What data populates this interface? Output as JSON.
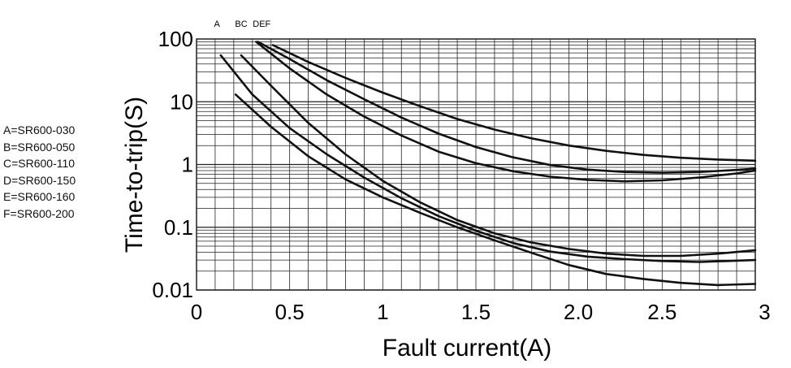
{
  "chart_data": {
    "type": "line",
    "xlabel": "Fault current(A)",
    "ylabel": "Time-to-trip(S)",
    "xlim": [
      0,
      3
    ],
    "ylim": [
      0.01,
      100
    ],
    "y_scale": "log",
    "grid": true,
    "x_ticks": [
      "0",
      "0.5",
      "1",
      "1.5",
      "2.0",
      "2.5",
      "3"
    ],
    "x_tick_values": [
      0,
      0.5,
      1,
      1.5,
      2.05,
      2.5,
      3.05
    ],
    "y_ticks": [
      "100",
      "10",
      "1",
      "0.1",
      "0.01"
    ],
    "y_tick_values": [
      100,
      10,
      1,
      0.1,
      0.01
    ],
    "top_labels": [
      {
        "text": "A",
        "x": 0.11
      },
      {
        "text": "BC",
        "x": 0.24
      },
      {
        "text": "DEF",
        "x": 0.35
      }
    ],
    "legend": [
      "A=SR600-030",
      "B=SR600-050",
      "C=SR600-110",
      "D=SR600-150",
      "E=SR600-160",
      "F=SR600-200"
    ],
    "curves": [
      {
        "points": [
          [
            0.21,
            13
          ],
          [
            0.4,
            4
          ],
          [
            0.6,
            1.35
          ],
          [
            0.8,
            0.58
          ],
          [
            1.0,
            0.3
          ],
          [
            1.2,
            0.17
          ],
          [
            1.4,
            0.1
          ],
          [
            1.6,
            0.062
          ],
          [
            1.8,
            0.039
          ],
          [
            2.0,
            0.025
          ],
          [
            2.2,
            0.018
          ],
          [
            2.4,
            0.015
          ],
          [
            2.6,
            0.013
          ],
          [
            2.8,
            0.012
          ],
          [
            3.0,
            0.0125
          ]
        ]
      },
      {
        "points": [
          [
            0.13,
            55
          ],
          [
            0.3,
            13
          ],
          [
            0.5,
            3.8
          ],
          [
            0.7,
            1.45
          ],
          [
            0.9,
            0.62
          ],
          [
            1.1,
            0.29
          ],
          [
            1.3,
            0.15
          ],
          [
            1.5,
            0.088
          ],
          [
            1.7,
            0.056
          ],
          [
            1.9,
            0.041
          ],
          [
            2.1,
            0.034
          ],
          [
            2.3,
            0.031
          ],
          [
            2.5,
            0.029
          ],
          [
            2.7,
            0.028
          ],
          [
            3.0,
            0.03
          ]
        ]
      },
      {
        "points": [
          [
            0.24,
            55
          ],
          [
            0.4,
            18
          ],
          [
            0.6,
            4.6
          ],
          [
            0.8,
            1.45
          ],
          [
            1.0,
            0.55
          ],
          [
            1.2,
            0.25
          ],
          [
            1.4,
            0.13
          ],
          [
            1.6,
            0.08
          ],
          [
            1.8,
            0.057
          ],
          [
            2.0,
            0.045
          ],
          [
            2.2,
            0.038
          ],
          [
            2.4,
            0.035
          ],
          [
            2.6,
            0.035
          ],
          [
            2.8,
            0.038
          ],
          [
            3.0,
            0.043
          ]
        ]
      },
      {
        "points": [
          [
            0.32,
            90
          ],
          [
            0.5,
            34
          ],
          [
            0.7,
            13
          ],
          [
            0.9,
            5.8
          ],
          [
            1.1,
            2.9
          ],
          [
            1.3,
            1.6
          ],
          [
            1.5,
            1.05
          ],
          [
            1.7,
            0.78
          ],
          [
            1.9,
            0.64
          ],
          [
            2.1,
            0.57
          ],
          [
            2.3,
            0.54
          ],
          [
            2.5,
            0.56
          ],
          [
            2.7,
            0.62
          ],
          [
            2.9,
            0.72
          ],
          [
            3.0,
            0.8
          ]
        ]
      },
      {
        "points": [
          [
            0.33,
            90
          ],
          [
            0.5,
            48
          ],
          [
            0.7,
            22
          ],
          [
            0.9,
            11
          ],
          [
            1.1,
            5.6
          ],
          [
            1.3,
            3.1
          ],
          [
            1.5,
            1.9
          ],
          [
            1.7,
            1.3
          ],
          [
            1.9,
            0.98
          ],
          [
            2.1,
            0.83
          ],
          [
            2.3,
            0.76
          ],
          [
            2.5,
            0.74
          ],
          [
            2.7,
            0.76
          ],
          [
            2.9,
            0.82
          ],
          [
            3.0,
            0.86
          ]
        ]
      },
      {
        "points": [
          [
            0.41,
            80
          ],
          [
            0.6,
            43
          ],
          [
            0.8,
            24
          ],
          [
            1.0,
            14
          ],
          [
            1.2,
            8.5
          ],
          [
            1.4,
            5.3
          ],
          [
            1.6,
            3.6
          ],
          [
            1.8,
            2.6
          ],
          [
            2.0,
            2.0
          ],
          [
            2.2,
            1.65
          ],
          [
            2.4,
            1.42
          ],
          [
            2.6,
            1.28
          ],
          [
            2.8,
            1.2
          ],
          [
            3.0,
            1.15
          ]
        ]
      }
    ]
  }
}
